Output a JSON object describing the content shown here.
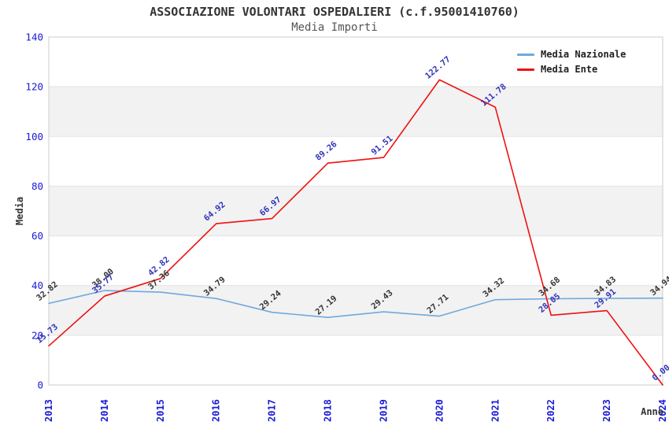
{
  "header": {
    "title": "ASSOCIAZIONE VOLONTARI OSPEDALIERI (c.f.95001410760)",
    "subtitle": "Media Importi"
  },
  "chart_data": {
    "type": "line",
    "title": "ASSOCIAZIONE VOLONTARI OSPEDALIERI (c.f.95001410760)",
    "subtitle": "Media Importi",
    "xlabel": "Anno",
    "ylabel": "Media",
    "ylim": [
      0,
      140
    ],
    "ytick_step": 20,
    "yticks": [
      0,
      20,
      40,
      60,
      80,
      100,
      120,
      140
    ],
    "categories": [
      "2013",
      "2014",
      "2015",
      "2016",
      "2017",
      "2018",
      "2019",
      "2020",
      "2021",
      "2022",
      "2023",
      "2024"
    ],
    "series": [
      {
        "name": "Media Nazionale",
        "color": "#6fa9dc",
        "label_color": "#333333",
        "values": [
          32.82,
          38.0,
          37.36,
          34.79,
          29.24,
          27.19,
          29.43,
          27.71,
          34.32,
          34.68,
          34.83,
          34.94
        ]
      },
      {
        "name": "Media Ente",
        "color": "#ee1111",
        "label_color": "#3333bb",
        "values": [
          15.73,
          35.77,
          42.82,
          64.92,
          66.97,
          89.26,
          91.51,
          122.77,
          111.78,
          28.05,
          29.91,
          0.0
        ]
      }
    ],
    "legend_position": "top-right",
    "grid": "horizontal gridlines every 20 with alternating shaded bands",
    "axis_tick_color": "#1a1ad6",
    "band_color": "#f2f2f2",
    "grid_color": "#e2e2e2",
    "border_color": "#cccccc",
    "xtick_rotation": 90,
    "data_label_rotation": -40,
    "data_label_format": "0.00"
  }
}
